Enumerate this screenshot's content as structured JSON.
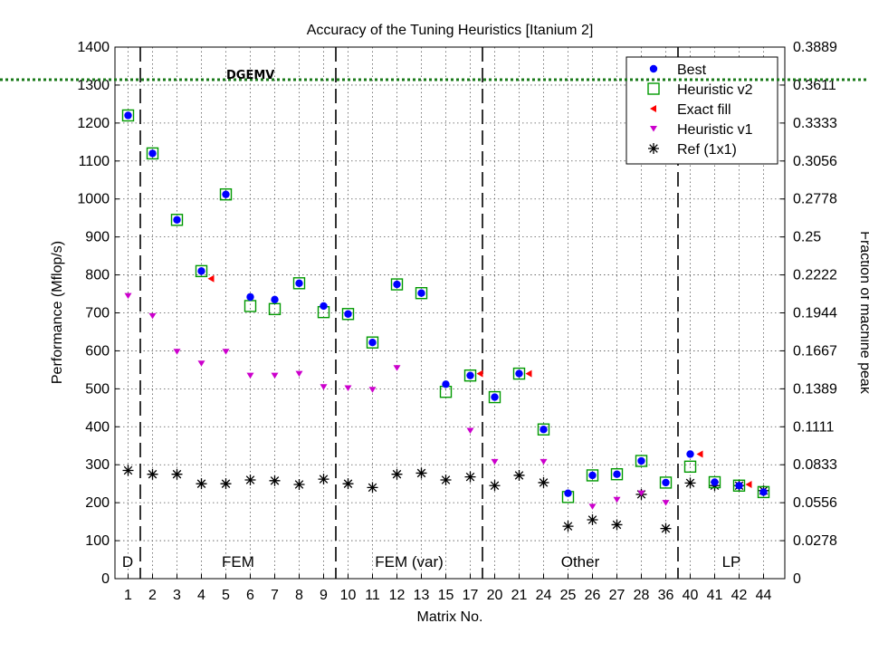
{
  "chart_data": {
    "type": "scatter",
    "title": "Accuracy of the Tuning Heuristics [Itanium 2]",
    "xlabel": "Matrix No.",
    "ylabel": "Performance (Mflop/s)",
    "y2label": "Fraction of machine peak",
    "ylim": [
      0,
      1400
    ],
    "yticks": [
      0,
      100,
      200,
      300,
      400,
      500,
      600,
      700,
      800,
      900,
      1000,
      1100,
      1200,
      1300,
      1400
    ],
    "y2ticks": [
      "0",
      "0.0278",
      "0.0556",
      "0.0833",
      "0.1111",
      "0.1389",
      "0.1667",
      "0.1944",
      "0.2222",
      "0.25",
      "0.2778",
      "0.3056",
      "0.3333",
      "0.3611",
      "0.3889"
    ],
    "categories": [
      "1",
      "2",
      "3",
      "4",
      "5",
      "6",
      "7",
      "8",
      "9",
      "10",
      "11",
      "12",
      "13",
      "15",
      "17",
      "20",
      "21",
      "24",
      "25",
      "26",
      "27",
      "28",
      "36",
      "40",
      "41",
      "42",
      "44"
    ],
    "grid": true,
    "legend_position": "top-right",
    "annotation": "DGEMV",
    "sections": [
      {
        "label": "D",
        "start": 0,
        "end": 0
      },
      {
        "label": "FEM",
        "start": 1,
        "end": 8
      },
      {
        "label": "FEM (var)",
        "start": 9,
        "end": 14
      },
      {
        "label": "Other",
        "start": 15,
        "end": 22
      },
      {
        "label": "LP",
        "start": 23,
        "end": 26
      }
    ],
    "series": [
      {
        "name": "Best",
        "color": "#0000ff",
        "marker": "circle",
        "values": [
          1220,
          1120,
          945,
          810,
          1012,
          742,
          735,
          778,
          718,
          697,
          622,
          775,
          752,
          512,
          535,
          478,
          540,
          393,
          225,
          272,
          275,
          310,
          253,
          328,
          254,
          245,
          228
        ]
      },
      {
        "name": "Heuristic v2",
        "color": "#009900",
        "marker": "square",
        "values": [
          1220,
          1120,
          945,
          810,
          1012,
          718,
          710,
          778,
          702,
          697,
          622,
          775,
          752,
          492,
          535,
          478,
          540,
          393,
          215,
          272,
          275,
          310,
          253,
          295,
          254,
          245,
          228
        ]
      },
      {
        "name": "Exact fill",
        "color": "#ff0000",
        "marker": "triangle-left",
        "values": [
          null,
          null,
          null,
          790,
          null,
          null,
          null,
          null,
          null,
          null,
          null,
          null,
          null,
          null,
          540,
          null,
          540,
          null,
          null,
          null,
          null,
          null,
          null,
          328,
          null,
          248,
          null
        ]
      },
      {
        "name": "Heuristic v1",
        "color": "#cc00cc",
        "marker": "triangle-down",
        "values": [
          745,
          692,
          598,
          567,
          598,
          535,
          535,
          540,
          505,
          502,
          498,
          555,
          null,
          null,
          390,
          308,
          null,
          308,
          null,
          190,
          208,
          225,
          200,
          null,
          null,
          null,
          null
        ]
      },
      {
        "name": "Ref (1x1)",
        "color": "#000000",
        "marker": "asterisk",
        "values": [
          285,
          275,
          275,
          250,
          250,
          260,
          258,
          248,
          262,
          250,
          240,
          275,
          278,
          260,
          268,
          245,
          272,
          253,
          138,
          155,
          142,
          222,
          132,
          252,
          245,
          245,
          232
        ]
      }
    ]
  }
}
